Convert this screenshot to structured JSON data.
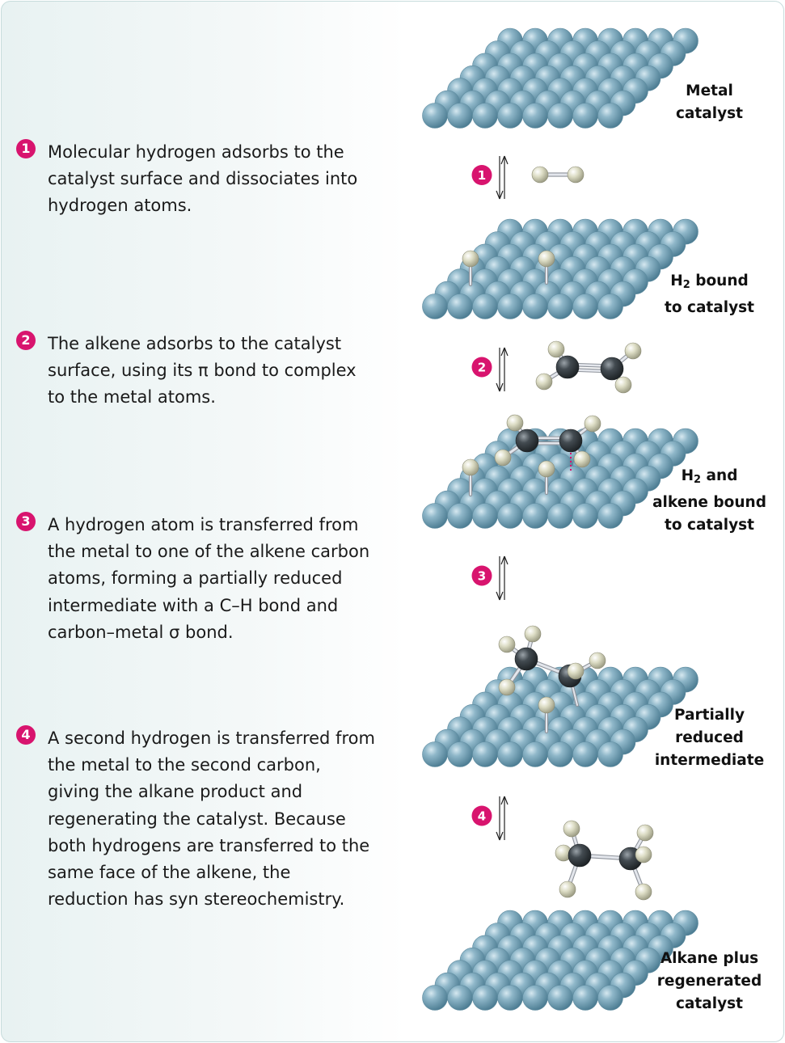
{
  "steps": [
    {
      "num": "1",
      "text": "Molecular hydrogen adsorbs to the catalyst surface and dissociates into hydrogen atoms."
    },
    {
      "num": "2",
      "text": "The alkene adsorbs to the catalyst surface, using its π bond to complex to the metal atoms."
    },
    {
      "num": "3",
      "text": "A hydrogen atom is transferred from the metal to one of the alkene carbon atoms, forming a partially reduced intermediate with a C–H bond and carbon–metal σ bond."
    },
    {
      "num": "4",
      "text": "A second hydrogen is transferred from the metal to the second carbon, giving the alkane product and regenerating the catalyst. Because both hydrogens are transferred to the same face of the alkene, the reduction has syn stereochemistry."
    }
  ],
  "labels": {
    "metal_catalyst": [
      "Metal",
      "catalyst"
    ],
    "h2_bound": {
      "h": "H",
      "sub": "2",
      "rest": " bound",
      "line2": "to catalyst"
    },
    "h2_alkene": {
      "h": "H",
      "sub": "2",
      "rest": " and",
      "line2": "alkene bound",
      "line3": "to catalyst"
    },
    "partial": [
      "Partially",
      "reduced",
      "intermediate"
    ],
    "alkane": [
      "Alkane plus",
      "regenerated",
      "catalyst"
    ]
  },
  "colors": {
    "badge": "#d8146e",
    "metal_atom": "#6f9db3",
    "hydrogen_atom": "#d9d8c0",
    "carbon_atom": "#3a4045",
    "bond": "#c8ccd4"
  }
}
